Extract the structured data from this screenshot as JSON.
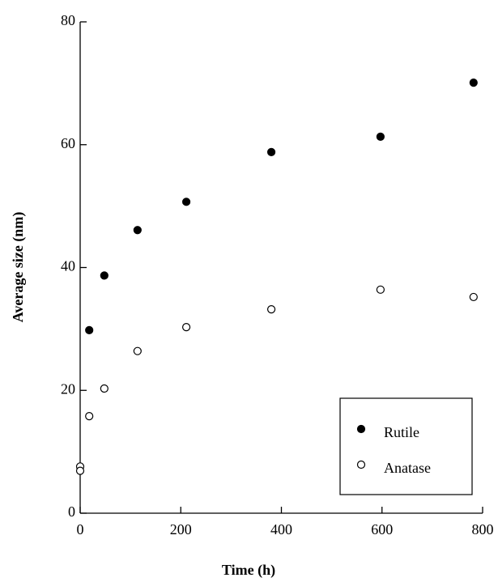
{
  "chart_data": {
    "type": "scatter",
    "xlabel": "Time (h)",
    "ylabel": "Average size (nm)",
    "xlim": [
      0,
      800
    ],
    "ylim": [
      0,
      80
    ],
    "xticks": [
      0,
      200,
      400,
      600,
      800
    ],
    "yticks": [
      0,
      20,
      40,
      60,
      80
    ],
    "legend": "lower right",
    "series": [
      {
        "name": "Rutile",
        "color": "#000000",
        "filled": true,
        "x": [
          18,
          48,
          114,
          211,
          380,
          597,
          782
        ],
        "values": [
          29.8,
          38.7,
          46.1,
          50.7,
          58.8,
          61.3,
          70.1
        ]
      },
      {
        "name": "Anatase",
        "color": "#000000",
        "filled": false,
        "x": [
          0,
          0,
          18,
          48,
          114,
          211,
          380,
          597,
          782
        ],
        "values": [
          7.6,
          6.9,
          15.8,
          20.3,
          26.4,
          30.3,
          33.2,
          36.4,
          35.2
        ]
      }
    ]
  }
}
